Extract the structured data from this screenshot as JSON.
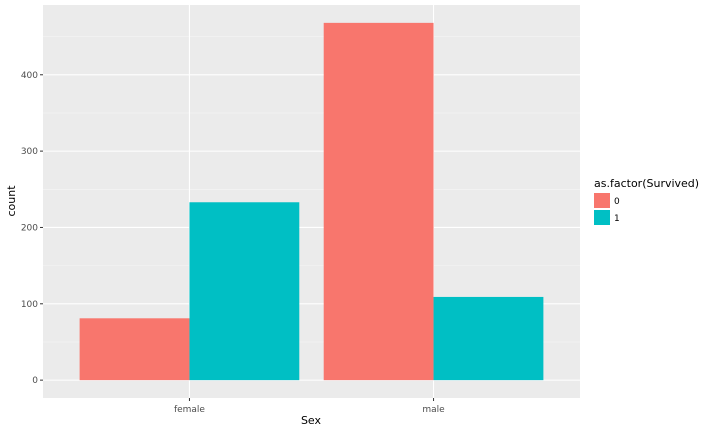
{
  "chart_data": {
    "type": "bar",
    "categories": [
      "female",
      "male"
    ],
    "series": [
      {
        "name": "0",
        "values": [
          81,
          468
        ]
      },
      {
        "name": "1",
        "values": [
          233,
          109
        ]
      }
    ],
    "title": "",
    "xlabel": "Sex",
    "ylabel": "count",
    "ylim": [
      -23.4,
      491.4
    ],
    "yticks": [
      0,
      100,
      200,
      300,
      400
    ],
    "grid": true,
    "legend": {
      "title": "as.factor(Survived)",
      "position": "right"
    },
    "colors": {
      "0": "#F8766D",
      "1": "#00BFC4",
      "panel_background": "#EBEBEB",
      "grid_major": "#FFFFFF",
      "grid_minor": "#F5F5F5"
    }
  }
}
